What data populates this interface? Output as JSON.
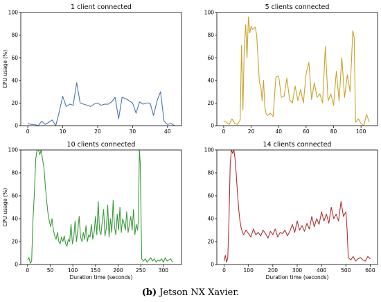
{
  "caption": {
    "label": "(b)",
    "text": "Jetson NX Xavier."
  },
  "chart_data": [
    {
      "type": "line",
      "title": "1 client connected",
      "xlabel": "",
      "ylabel": "CPU usage (%)",
      "xlim": [
        -2,
        44
      ],
      "ylim": [
        0,
        100
      ],
      "xticks": [
        0,
        10,
        20,
        30,
        40
      ],
      "yticks": [
        0,
        20,
        40,
        60,
        80,
        100
      ],
      "color": "#4c72b0",
      "grid": false,
      "series": [
        {
          "x": [
            0,
            1,
            2,
            3,
            4,
            5,
            6,
            7,
            8,
            9,
            10,
            11,
            12,
            13,
            14,
            15,
            16,
            17,
            18,
            19,
            20,
            21,
            22,
            23,
            24,
            25,
            26,
            27,
            28,
            29,
            30,
            31,
            32,
            33,
            34,
            35,
            36,
            37,
            38,
            39,
            40,
            41,
            42
          ],
          "y": [
            2,
            1,
            1,
            0,
            4,
            1,
            3,
            5,
            0,
            12,
            26,
            17,
            19,
            18,
            38,
            20,
            19,
            18,
            17,
            19,
            20,
            18,
            19,
            19,
            21,
            25,
            6,
            25,
            24,
            22,
            20,
            11,
            21,
            19,
            20,
            20,
            9,
            22,
            30,
            4,
            1,
            2,
            0
          ]
        }
      ]
    },
    {
      "type": "line",
      "title": "5 clients connected",
      "xlabel": "",
      "ylabel": "",
      "xlim": [
        -5,
        112
      ],
      "ylim": [
        0,
        100
      ],
      "xticks": [
        0,
        20,
        40,
        60,
        80,
        100
      ],
      "yticks": [
        0,
        20,
        40,
        60,
        80,
        100
      ],
      "color": "#c9a227",
      "grid": false,
      "series": [
        {
          "x": [
            0,
            2,
            4,
            6,
            8,
            10,
            12,
            13,
            14,
            15,
            16,
            17,
            18,
            19,
            20,
            21,
            22,
            23,
            24,
            25,
            26,
            27,
            28,
            29,
            30,
            31,
            32,
            34,
            36,
            38,
            40,
            42,
            44,
            46,
            48,
            50,
            52,
            54,
            56,
            58,
            60,
            62,
            64,
            66,
            68,
            70,
            72,
            74,
            76,
            78,
            80,
            82,
            84,
            86,
            88,
            90,
            92,
            94,
            95,
            96,
            98,
            100,
            102,
            104,
            106
          ],
          "y": [
            4,
            3,
            1,
            6,
            2,
            1,
            5,
            71,
            14,
            70,
            89,
            60,
            96,
            82,
            88,
            85,
            86,
            87,
            80,
            60,
            38,
            35,
            22,
            40,
            16,
            10,
            9,
            11,
            8,
            43,
            44,
            25,
            26,
            42,
            23,
            20,
            35,
            22,
            32,
            20,
            46,
            56,
            23,
            38,
            25,
            28,
            20,
            70,
            22,
            28,
            18,
            48,
            22,
            60,
            25,
            45,
            30,
            84,
            78,
            3,
            6,
            2,
            0,
            10,
            3
          ]
        }
      ]
    },
    {
      "type": "line",
      "title": "10 clients connected",
      "xlabel": "Duration time (seconds)",
      "ylabel": "CPU usage (%)",
      "xlim": [
        -15,
        340
      ],
      "ylim": [
        0,
        100
      ],
      "xticks": [
        0,
        50,
        100,
        150,
        200,
        250,
        300
      ],
      "yticks": [
        0,
        20,
        40,
        60,
        80,
        100
      ],
      "color": "#3a9a3a",
      "grid": false,
      "series": [
        {
          "x": [
            0,
            3,
            6,
            9,
            12,
            15,
            18,
            21,
            24,
            27,
            30,
            33,
            36,
            39,
            42,
            45,
            48,
            51,
            54,
            57,
            60,
            63,
            66,
            69,
            72,
            75,
            78,
            81,
            84,
            87,
            90,
            93,
            96,
            99,
            102,
            105,
            108,
            111,
            114,
            117,
            120,
            123,
            126,
            129,
            132,
            135,
            138,
            141,
            144,
            147,
            150,
            153,
            156,
            159,
            162,
            165,
            168,
            171,
            174,
            177,
            180,
            183,
            186,
            189,
            192,
            195,
            198,
            201,
            204,
            207,
            210,
            213,
            216,
            219,
            222,
            225,
            228,
            231,
            234,
            237,
            240,
            243,
            245,
            247,
            249,
            252,
            256,
            260,
            264,
            268,
            272,
            276,
            280,
            284,
            288,
            292,
            296,
            300,
            304,
            308,
            312,
            316,
            320
          ],
          "y": [
            4,
            6,
            1,
            3,
            40,
            62,
            92,
            100,
            100,
            96,
            100,
            92,
            85,
            70,
            56,
            45,
            38,
            33,
            40,
            30,
            25,
            22,
            28,
            20,
            18,
            24,
            20,
            25,
            18,
            16,
            22,
            20,
            35,
            18,
            24,
            38,
            20,
            30,
            42,
            24,
            20,
            28,
            22,
            34,
            20,
            26,
            24,
            35,
            22,
            28,
            42,
            26,
            55,
            30,
            26,
            38,
            48,
            25,
            32,
            52,
            24,
            40,
            28,
            56,
            33,
            26,
            44,
            30,
            50,
            28,
            40,
            36,
            30,
            46,
            28,
            35,
            42,
            30,
            48,
            26,
            35,
            30,
            40,
            100,
            88,
            5,
            3,
            5,
            2,
            4,
            6,
            3,
            5,
            2,
            4,
            3,
            5,
            2,
            6,
            3,
            4,
            5,
            2
          ]
        }
      ]
    },
    {
      "type": "line",
      "title": "14 clients connected",
      "xlabel": "Duration time (seconds)",
      "ylabel": "",
      "xlim": [
        -30,
        630
      ],
      "ylim": [
        0,
        100
      ],
      "xticks": [
        0,
        100,
        200,
        300,
        400,
        500,
        600
      ],
      "yticks": [
        0,
        20,
        40,
        60,
        80,
        100
      ],
      "color": "#b03030",
      "grid": false,
      "series": [
        {
          "x": [
            0,
            5,
            10,
            15,
            20,
            25,
            30,
            35,
            40,
            45,
            50,
            55,
            60,
            65,
            70,
            75,
            80,
            90,
            100,
            110,
            120,
            130,
            140,
            150,
            160,
            170,
            180,
            190,
            200,
            210,
            220,
            230,
            240,
            250,
            260,
            270,
            280,
            290,
            300,
            310,
            320,
            330,
            340,
            350,
            360,
            370,
            380,
            390,
            400,
            410,
            420,
            430,
            440,
            450,
            460,
            470,
            480,
            490,
            500,
            505,
            510,
            520,
            530,
            540,
            550,
            560,
            570,
            580,
            590,
            600
          ],
          "y": [
            3,
            8,
            2,
            6,
            40,
            88,
            100,
            97,
            100,
            92,
            78,
            62,
            48,
            38,
            32,
            28,
            26,
            30,
            27,
            24,
            31,
            26,
            28,
            25,
            30,
            27,
            23,
            29,
            26,
            31,
            24,
            28,
            27,
            30,
            25,
            29,
            35,
            28,
            38,
            30,
            34,
            29,
            36,
            31,
            42,
            33,
            40,
            35,
            46,
            38,
            44,
            36,
            50,
            40,
            44,
            38,
            55,
            42,
            46,
            30,
            6,
            4,
            7,
            3,
            5,
            6,
            4,
            3,
            7,
            5
          ]
        }
      ]
    }
  ]
}
